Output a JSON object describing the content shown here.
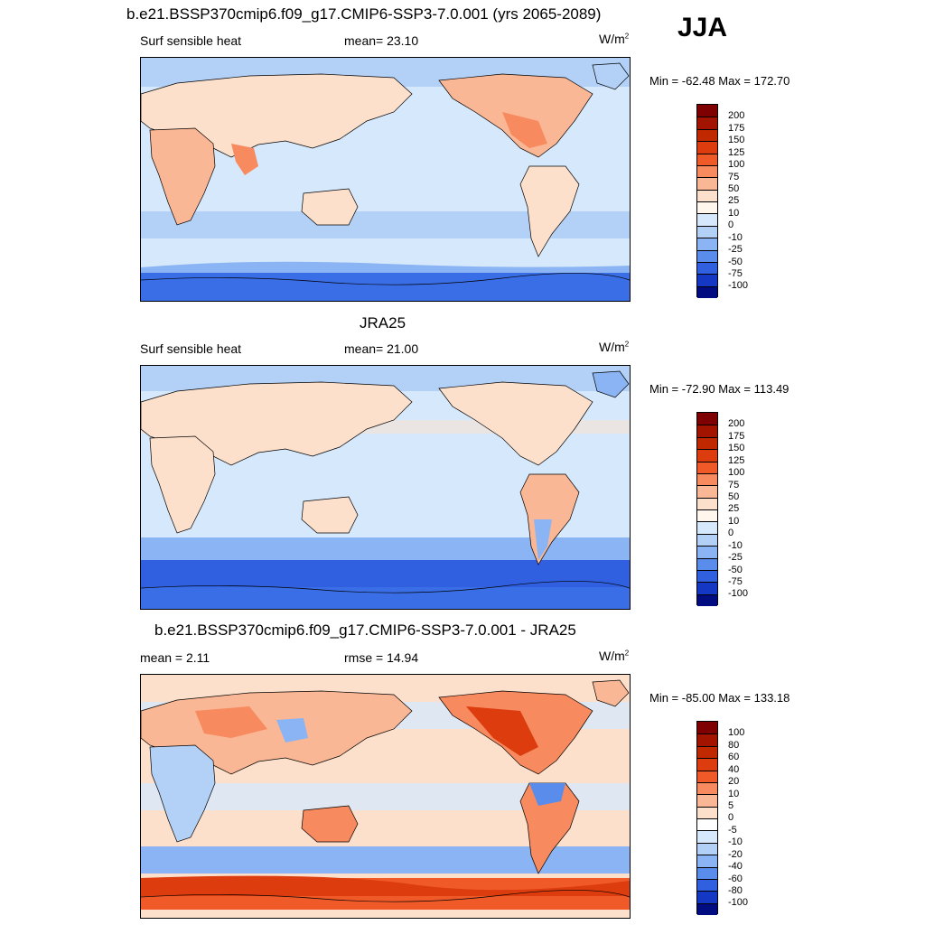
{
  "season": "JJA",
  "panels": [
    {
      "title": "b.e21.BSSP370cmip6.f09_g17.CMIP6-SSP3-7.0.001 (yrs 2065-2089)",
      "left_label": "Surf sensible heat",
      "center_label": "mean=  23.10",
      "units_base": "W/m",
      "units_exp": "2",
      "minmax": "Min = -62.48 Max = 172.70",
      "colorbar": {
        "labels": [
          "200",
          "175",
          "150",
          "125",
          "100",
          "75",
          "50",
          "25",
          "10",
          "0",
          "-10",
          "-25",
          "-50",
          "-75",
          "-100"
        ],
        "colors": [
          "#7f0000",
          "#a31400",
          "#c02800",
          "#dc3c0e",
          "#f05a28",
          "#f78a5e",
          "#fab795",
          "#fde0cc",
          "#fff6ee",
          "#d6e8fb",
          "#b3d1f7",
          "#8ab4f3",
          "#5a8cec",
          "#3060e0",
          "#1438c4",
          "#000c80"
        ]
      }
    },
    {
      "title": "JRA25",
      "left_label": "Surf sensible heat",
      "center_label": "mean=  21.00",
      "units_base": "W/m",
      "units_exp": "2",
      "minmax": "Min = -72.90 Max = 113.49",
      "colorbar": {
        "labels": [
          "200",
          "175",
          "150",
          "125",
          "100",
          "75",
          "50",
          "25",
          "10",
          "0",
          "-10",
          "-25",
          "-50",
          "-75",
          "-100"
        ],
        "colors": [
          "#7f0000",
          "#a31400",
          "#c02800",
          "#dc3c0e",
          "#f05a28",
          "#f78a5e",
          "#fab795",
          "#fde0cc",
          "#fff6ee",
          "#d6e8fb",
          "#b3d1f7",
          "#8ab4f3",
          "#5a8cec",
          "#3060e0",
          "#1438c4",
          "#000c80"
        ]
      }
    },
    {
      "title": "b.e21.BSSP370cmip6.f09_g17.CMIP6-SSP3-7.0.001 - JRA25",
      "left_label": "mean =   2.11",
      "center_label": "rmse =  14.94",
      "units_base": "W/m",
      "units_exp": "2",
      "minmax": "Min = -85.00 Max = 133.18",
      "colorbar": {
        "labels": [
          "100",
          "80",
          "60",
          "40",
          "20",
          "10",
          "5",
          "0",
          "-5",
          "-10",
          "-20",
          "-40",
          "-60",
          "-80",
          "-100"
        ],
        "colors": [
          "#7f0000",
          "#a31400",
          "#c02800",
          "#dc3c0e",
          "#f05a28",
          "#f78a5e",
          "#fab795",
          "#fde0cc",
          "#ffffff",
          "#d6e8fb",
          "#b3d1f7",
          "#8ab4f3",
          "#5a8cec",
          "#3060e0",
          "#1438c4",
          "#000c80"
        ]
      }
    }
  ]
}
